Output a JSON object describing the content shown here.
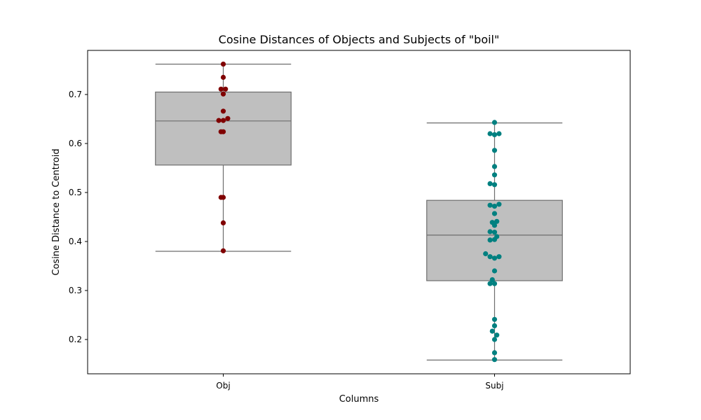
{
  "chart_data": {
    "type": "box",
    "title": "Cosine Distances of Objects and Subjects of \"boil\"",
    "xlabel": "Columns",
    "ylabel": "Cosine Distance to Centroid",
    "ylim": [
      0.13,
      0.79
    ],
    "yticks": [
      0.2,
      0.3,
      0.4,
      0.5,
      0.6,
      0.7
    ],
    "ytick_labels": [
      "0.2",
      "0.3",
      "0.4",
      "0.5",
      "0.6",
      "0.7"
    ],
    "categories": [
      "Obj",
      "Subj"
    ],
    "boxes": [
      {
        "name": "Obj",
        "whisker_low": 0.38,
        "q1": 0.556,
        "median": 0.646,
        "q3": 0.705,
        "whisker_high": 0.762
      },
      {
        "name": "Subj",
        "whisker_low": 0.158,
        "q1": 0.32,
        "median": 0.413,
        "q3": 0.484,
        "whisker_high": 0.642
      }
    ],
    "points": [
      {
        "name": "Obj",
        "color": "#800000",
        "values": [
          [
            0,
            0.762
          ],
          [
            0,
            0.735
          ],
          [
            -0.04,
            0.711
          ],
          [
            0.04,
            0.711
          ],
          [
            0,
            0.701
          ],
          [
            0,
            0.666
          ],
          [
            0.08,
            0.651
          ],
          [
            -0.08,
            0.647
          ],
          [
            0,
            0.647
          ],
          [
            -0.04,
            0.624
          ],
          [
            0,
            0.624
          ],
          [
            -0.04,
            0.49
          ],
          [
            0,
            0.49
          ],
          [
            0,
            0.438
          ],
          [
            0,
            0.381
          ]
        ]
      },
      {
        "name": "Subj",
        "color": "#008080",
        "values": [
          [
            0,
            0.643
          ],
          [
            -0.08,
            0.62
          ],
          [
            0,
            0.618
          ],
          [
            0.08,
            0.62
          ],
          [
            0,
            0.586
          ],
          [
            0,
            0.553
          ],
          [
            0,
            0.536
          ],
          [
            -0.08,
            0.518
          ],
          [
            0,
            0.516
          ],
          [
            -0.08,
            0.474
          ],
          [
            0,
            0.472
          ],
          [
            0.08,
            0.476
          ],
          [
            0,
            0.457
          ],
          [
            -0.04,
            0.439
          ],
          [
            0.04,
            0.441
          ],
          [
            0,
            0.433
          ],
          [
            -0.08,
            0.42
          ],
          [
            0,
            0.419
          ],
          [
            0.04,
            0.41
          ],
          [
            -0.08,
            0.403
          ],
          [
            0,
            0.404
          ],
          [
            -0.16,
            0.375
          ],
          [
            -0.08,
            0.369
          ],
          [
            0,
            0.366
          ],
          [
            0.08,
            0.369
          ],
          [
            0,
            0.34
          ],
          [
            -0.04,
            0.322
          ],
          [
            -0.08,
            0.314
          ],
          [
            0,
            0.314
          ],
          [
            0,
            0.241
          ],
          [
            0,
            0.228
          ],
          [
            -0.04,
            0.217
          ],
          [
            0.04,
            0.209
          ],
          [
            0,
            0.2
          ],
          [
            0,
            0.173
          ],
          [
            0,
            0.159
          ]
        ]
      }
    ],
    "box_color": "#bfbfbf",
    "line_color": "#6e6e6e"
  }
}
